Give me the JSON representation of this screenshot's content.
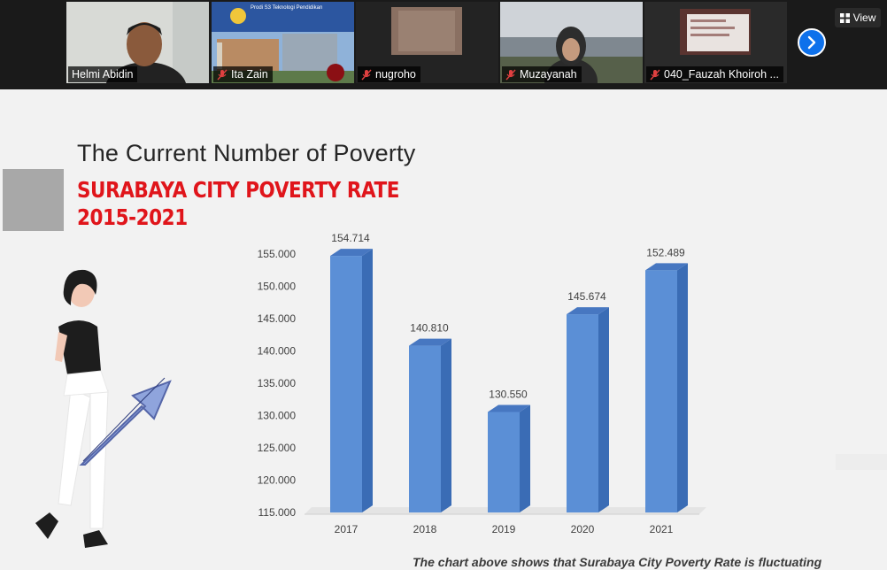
{
  "meeting": {
    "participants": [
      {
        "name": "Helmi Abidin",
        "muted": false,
        "active": true
      },
      {
        "name": "Ita Zain",
        "muted": true,
        "active": false,
        "banner_text": "Prodi S3 Teknologi Pendidikan"
      },
      {
        "name": "nugroho",
        "muted": true,
        "active": false
      },
      {
        "name": "Muzayanah",
        "muted": true,
        "active": false
      },
      {
        "name": "040_Fauzah Khoiroh ...",
        "muted": true,
        "active": false
      }
    ],
    "view_label": "View",
    "next_icon": "chevron-right-icon"
  },
  "slide": {
    "title": "The Current Number of Poverty",
    "subtitle_line1": "SURABAYA CITY POVERTY RATE",
    "subtitle_line2": "2015-2021",
    "caption": "The chart above shows that Surabaya City Poverty Rate is fluctuating"
  },
  "colors": {
    "accent_red": "#e0151b",
    "bar_front": "#5b8fd6",
    "bar_side": "#3a6cb5",
    "bar_top": "#4777c1",
    "arrow_fill": "#8fa4dc",
    "active_border": "#b7d334"
  },
  "chart_data": {
    "type": "bar",
    "categories": [
      "2017",
      "2018",
      "2019",
      "2020",
      "2021"
    ],
    "values": [
      154714,
      140810,
      130550,
      145674,
      152489
    ],
    "data_labels": [
      "154.714",
      "140.810",
      "130.550",
      "145.674",
      "152.489"
    ],
    "y_ticks": [
      115000,
      120000,
      125000,
      130000,
      135000,
      140000,
      145000,
      150000,
      155000
    ],
    "y_tick_labels": [
      "115.000",
      "120.000",
      "125.000",
      "130.000",
      "135.000",
      "140.000",
      "145.000",
      "150.000",
      "155.000"
    ],
    "ylim": [
      115000,
      155000
    ],
    "style": "3d",
    "grid": false,
    "legend": "none"
  }
}
